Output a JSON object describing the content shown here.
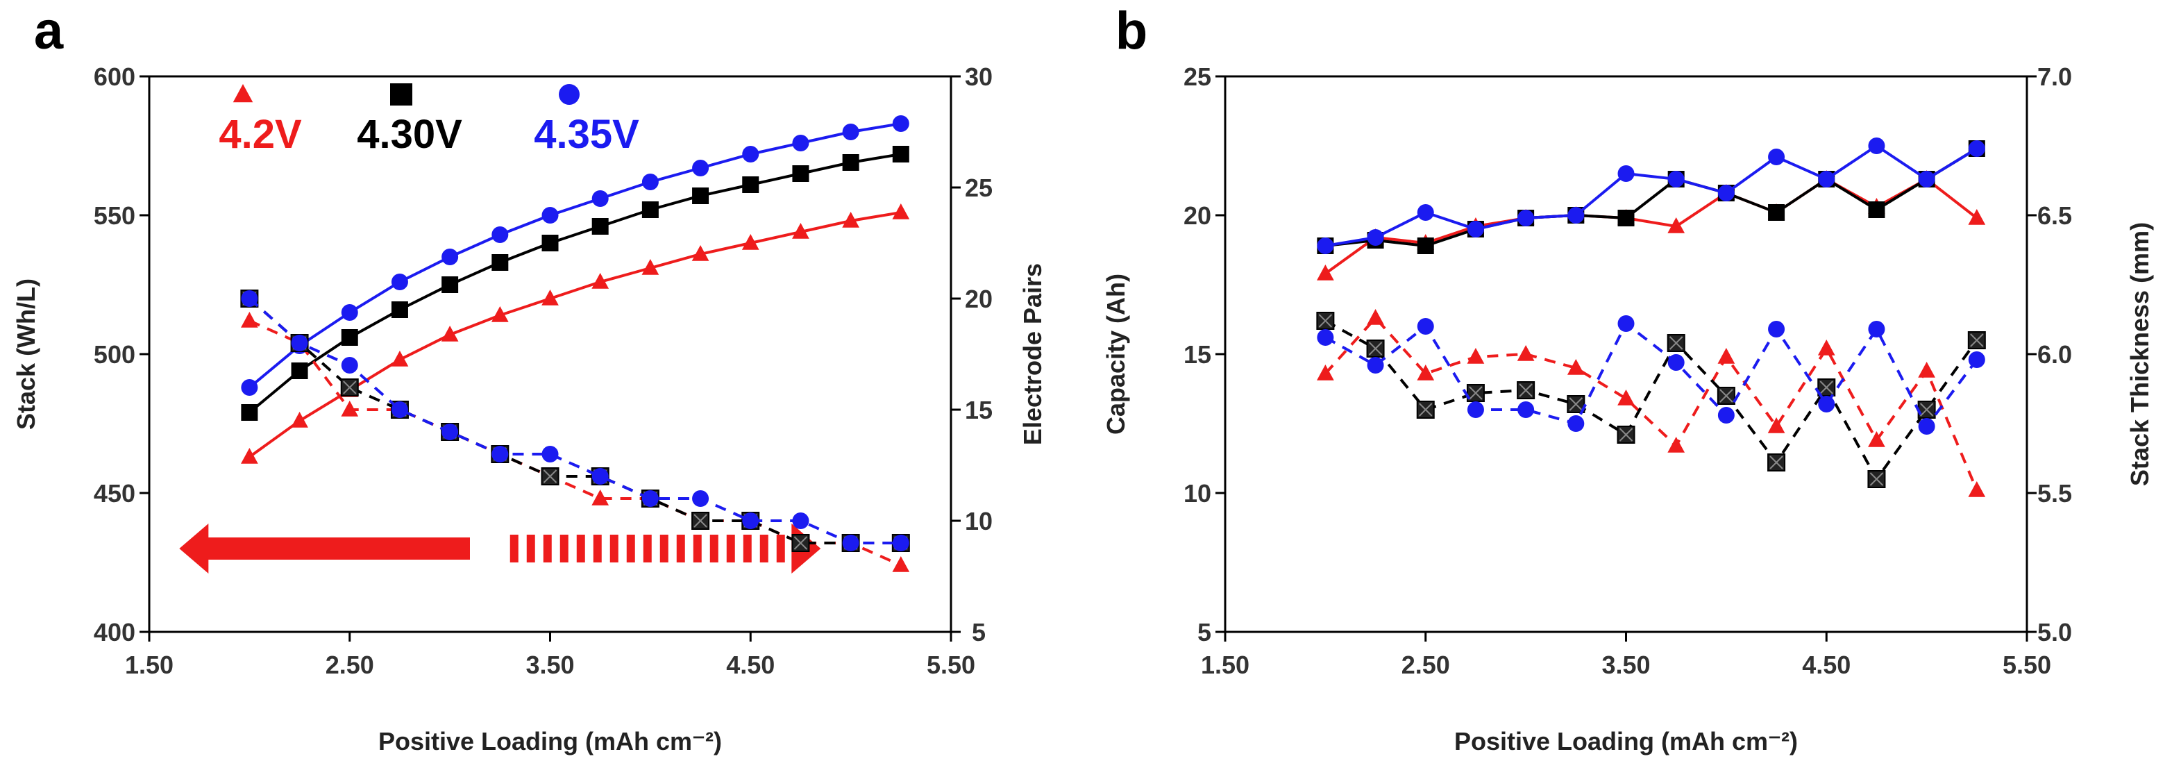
{
  "chart_data": [
    {
      "type": "line",
      "panel_label": "a",
      "xlabel": "Positive Loading (mAh cm⁻²)",
      "ylabel": "Stack (Wh/L)",
      "y2label": "Electrode Pairs",
      "xlim": [
        1.5,
        5.5
      ],
      "ylim": [
        400,
        600
      ],
      "y2lim": [
        5,
        30
      ],
      "xticks": [
        "1.50",
        "2.50",
        "3.50",
        "4.50",
        "5.50"
      ],
      "xtick_values": [
        1.5,
        2.5,
        3.5,
        4.5,
        5.5
      ],
      "yticks": [
        "400",
        "450",
        "500",
        "550",
        "600"
      ],
      "ytick_values": [
        400,
        450,
        500,
        550,
        600
      ],
      "y2ticks": [
        "5",
        "10",
        "15",
        "20",
        "25",
        "30"
      ],
      "y2tick_values": [
        5,
        10,
        15,
        20,
        25,
        30
      ],
      "x": [
        2.0,
        2.25,
        2.5,
        2.75,
        3.0,
        3.25,
        3.5,
        3.75,
        4.0,
        4.25,
        4.5,
        4.75,
        5.0,
        5.25
      ],
      "legend": [
        {
          "label": "4.2V",
          "color": "#ee1c1c",
          "marker": "triangle"
        },
        {
          "label": "4.30V",
          "color": "#000000",
          "marker": "square"
        },
        {
          "label": "4.35V",
          "color": "#1b1bf0",
          "marker": "circle"
        }
      ],
      "series": [
        {
          "name": "4.2V energy density",
          "axis": "left",
          "style": "solid",
          "marker": "triangle",
          "color": "#ee1c1c",
          "values": [
            463,
            476,
            487,
            498,
            507,
            514,
            520,
            526,
            531,
            536,
            540,
            544,
            548,
            551
          ]
        },
        {
          "name": "4.30V energy density",
          "axis": "left",
          "style": "solid",
          "marker": "square",
          "color": "#000000",
          "values": [
            479,
            494,
            506,
            516,
            525,
            533,
            540,
            546,
            552,
            557,
            561,
            565,
            569,
            572
          ]
        },
        {
          "name": "4.35V energy density",
          "axis": "left",
          "style": "solid",
          "marker": "circle",
          "color": "#1b1bf0",
          "values": [
            488,
            503,
            515,
            526,
            535,
            543,
            550,
            556,
            562,
            567,
            572,
            576,
            580,
            583
          ]
        },
        {
          "name": "4.2V electrode pairs",
          "axis": "right",
          "style": "dashed",
          "marker": "triangle",
          "color": "#ee1c1c",
          "values": [
            19,
            18,
            15,
            15,
            14,
            13,
            12,
            11,
            11,
            10,
            10,
            9,
            9,
            8
          ]
        },
        {
          "name": "4.30V electrode pairs",
          "axis": "right",
          "style": "dashed",
          "marker": "square-x",
          "color": "#000000",
          "values": [
            20,
            18,
            16,
            15,
            14,
            13,
            12,
            12,
            11,
            10,
            10,
            9,
            9,
            9
          ]
        },
        {
          "name": "4.35V electrode pairs",
          "axis": "right",
          "style": "dashed",
          "marker": "circle",
          "color": "#1b1bf0",
          "values": [
            20,
            18,
            17,
            15,
            14,
            13,
            13,
            12,
            11,
            11,
            10,
            10,
            9,
            9
          ]
        }
      ],
      "annotations": [
        {
          "type": "arrow-left-solid",
          "color": "#ee1c1c",
          "from_x": 3.1,
          "to_x": 1.65,
          "y": 430
        },
        {
          "type": "arrow-right-dashed",
          "color": "#ee1c1c",
          "from_x": 3.3,
          "to_x": 4.85,
          "y": 430
        }
      ]
    },
    {
      "type": "line",
      "panel_label": "b",
      "xlabel": "Positive Loading (mAh cm⁻²)",
      "ylabel": "Capacity (Ah)",
      "y2label": "Stack Thickness (mm)",
      "xlim": [
        1.5,
        5.5
      ],
      "ylim": [
        5,
        25
      ],
      "y2lim": [
        5.0,
        7.0
      ],
      "xticks": [
        "1.50",
        "2.50",
        "3.50",
        "4.50",
        "5.50"
      ],
      "xtick_values": [
        1.5,
        2.5,
        3.5,
        4.5,
        5.5
      ],
      "yticks": [
        "5",
        "10",
        "15",
        "20",
        "25"
      ],
      "ytick_values": [
        5,
        10,
        15,
        20,
        25
      ],
      "y2ticks": [
        "5.0",
        "5.5",
        "6.0",
        "6.5",
        "7.0"
      ],
      "y2tick_values": [
        5.0,
        5.5,
        6.0,
        6.5,
        7.0
      ],
      "x": [
        2.0,
        2.25,
        2.5,
        2.75,
        3.0,
        3.25,
        3.5,
        3.75,
        4.0,
        4.25,
        4.5,
        4.75,
        5.0,
        5.25
      ],
      "series": [
        {
          "name": "4.2V capacity",
          "axis": "left",
          "style": "solid",
          "marker": "triangle",
          "color": "#ee1c1c",
          "values": [
            17.9,
            19.2,
            19.0,
            19.6,
            19.9,
            20.0,
            19.9,
            19.6,
            20.8,
            20.1,
            21.3,
            20.3,
            21.3,
            19.9
          ]
        },
        {
          "name": "4.30V capacity",
          "axis": "left",
          "style": "solid",
          "marker": "square",
          "color": "#000000",
          "values": [
            18.9,
            19.1,
            18.9,
            19.5,
            19.9,
            20.0,
            19.9,
            21.3,
            20.8,
            20.1,
            21.3,
            20.2,
            21.3,
            22.4
          ]
        },
        {
          "name": "4.35V capacity",
          "axis": "left",
          "style": "solid",
          "marker": "circle",
          "color": "#1b1bf0",
          "values": [
            18.9,
            19.2,
            20.1,
            19.5,
            19.9,
            20.0,
            21.5,
            21.3,
            20.8,
            22.1,
            21.3,
            22.5,
            21.3,
            22.4
          ]
        },
        {
          "name": "4.2V stack thickness",
          "axis": "right",
          "style": "dashed",
          "marker": "triangle",
          "color": "#ee1c1c",
          "values": [
            5.93,
            6.13,
            5.93,
            5.99,
            6.0,
            5.95,
            5.84,
            5.67,
            5.99,
            5.74,
            6.02,
            5.69,
            5.94,
            5.51
          ]
        },
        {
          "name": "4.30V stack thickness",
          "axis": "right",
          "style": "dashed",
          "marker": "square-x",
          "color": "#000000",
          "values": [
            6.12,
            6.02,
            5.8,
            5.86,
            5.87,
            5.82,
            5.71,
            6.04,
            5.85,
            5.61,
            5.88,
            5.55,
            5.8,
            6.05
          ]
        },
        {
          "name": "4.35V stack thickness",
          "axis": "right",
          "style": "dashed",
          "marker": "circle",
          "color": "#1b1bf0",
          "values": [
            6.06,
            5.96,
            6.1,
            5.8,
            5.8,
            5.75,
            6.11,
            5.97,
            5.78,
            6.09,
            5.82,
            6.09,
            5.74,
            5.98
          ]
        }
      ]
    }
  ]
}
